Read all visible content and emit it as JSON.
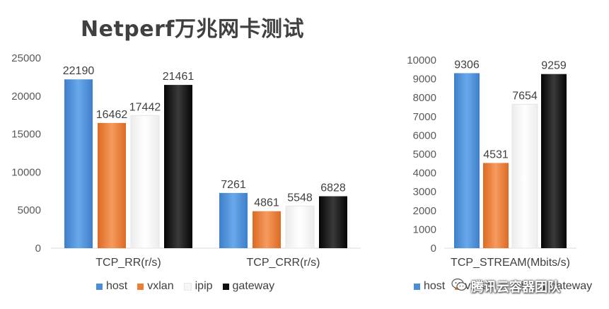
{
  "title": "Netperf万兆网卡测试",
  "colors": {
    "host": "#4a8fd6",
    "vxlan": "#ed7d31",
    "ipip": "#f7f7f7",
    "gateway": "#0f0f0f",
    "axis": "#d9d9d9",
    "text": "#404040"
  },
  "chart_data": [
    {
      "type": "bar",
      "title": "Netperf万兆网卡测试",
      "categories": [
        "TCP_RR(r/s)",
        "TCP_CRR(r/s)"
      ],
      "series": [
        {
          "name": "host",
          "values": [
            22190,
            7261
          ]
        },
        {
          "name": "vxlan",
          "values": [
            16462,
            4861
          ]
        },
        {
          "name": "ipip",
          "values": [
            17442,
            5548
          ]
        },
        {
          "name": "gateway",
          "values": [
            21461,
            6828
          ]
        }
      ],
      "yticks": [
        "0",
        "5000",
        "10000",
        "15000",
        "20000",
        "25000"
      ],
      "ylim": [
        0,
        25000
      ],
      "legend": [
        "host",
        "vxlan",
        "ipip",
        "gateway"
      ],
      "legend_position": "bottom",
      "grid": false
    },
    {
      "type": "bar",
      "categories": [
        "TCP_STREAM(Mbits/s)"
      ],
      "series": [
        {
          "name": "host",
          "values": [
            9306
          ]
        },
        {
          "name": "vxlan",
          "values": [
            4531
          ]
        },
        {
          "name": "ipip",
          "values": [
            7654
          ]
        },
        {
          "name": "gateway",
          "values": [
            9259
          ]
        }
      ],
      "yticks": [
        "0",
        "1000",
        "2000",
        "3000",
        "4000",
        "5000",
        "6000",
        "7000",
        "8000",
        "9000",
        "10000"
      ],
      "ylim": [
        0,
        10000
      ],
      "legend": [
        "host",
        "vxlan",
        "ipip",
        "gateway"
      ],
      "legend_position": "bottom",
      "grid": false
    }
  ],
  "watermark": {
    "icon": "wechat-icon",
    "text": "腾讯云容器团队"
  }
}
